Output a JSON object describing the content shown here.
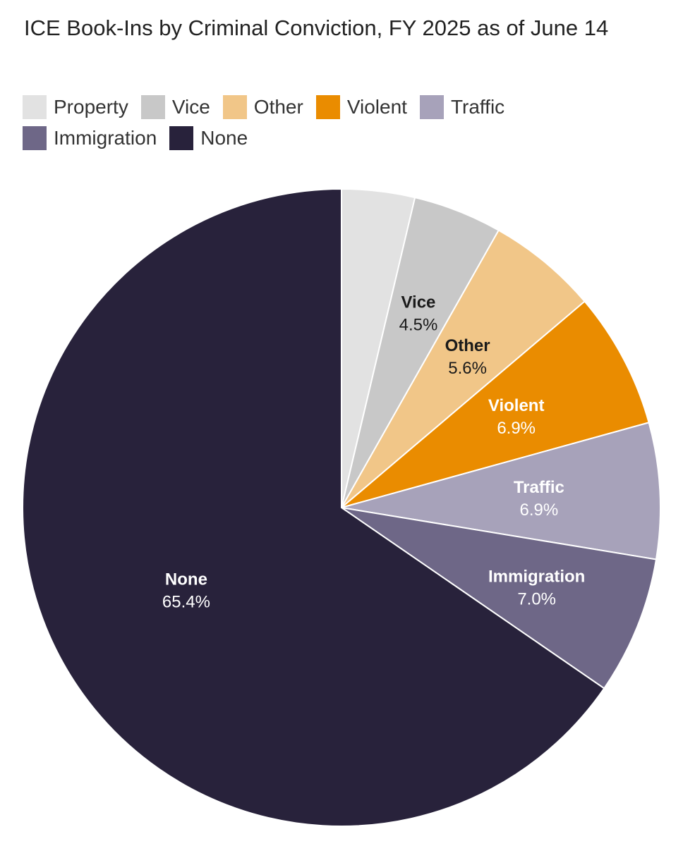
{
  "chart_data": {
    "type": "pie",
    "title": "ICE Book-Ins by Criminal Conviction, FY 2025 as of June 14",
    "legend_position": "top-left",
    "slices": [
      {
        "name": "Property",
        "value": 3.7,
        "label": "",
        "color": "#e2e2e2",
        "label_visible": false
      },
      {
        "name": "Vice",
        "value": 4.5,
        "label": "4.5%",
        "color": "#c8c8c8",
        "text_color": "#1a1a1a",
        "label_visible": true
      },
      {
        "name": "Other",
        "value": 5.6,
        "label": "5.6%",
        "color": "#f1c688",
        "text_color": "#1a1a1a",
        "label_visible": true
      },
      {
        "name": "Violent",
        "value": 6.9,
        "label": "6.9%",
        "color": "#ea8c00",
        "text_color": "#ffffff",
        "label_visible": true
      },
      {
        "name": "Traffic",
        "value": 6.9,
        "label": "6.9%",
        "color": "#a7a2ba",
        "text_color": "#ffffff",
        "label_visible": true
      },
      {
        "name": "Immigration",
        "value": 7.0,
        "label": "7.0%",
        "color": "#6e6787",
        "text_color": "#ffffff",
        "label_visible": true
      },
      {
        "name": "None",
        "value": 65.4,
        "label": "65.4%",
        "color": "#28223b",
        "text_color": "#ffffff",
        "label_visible": true
      }
    ]
  }
}
